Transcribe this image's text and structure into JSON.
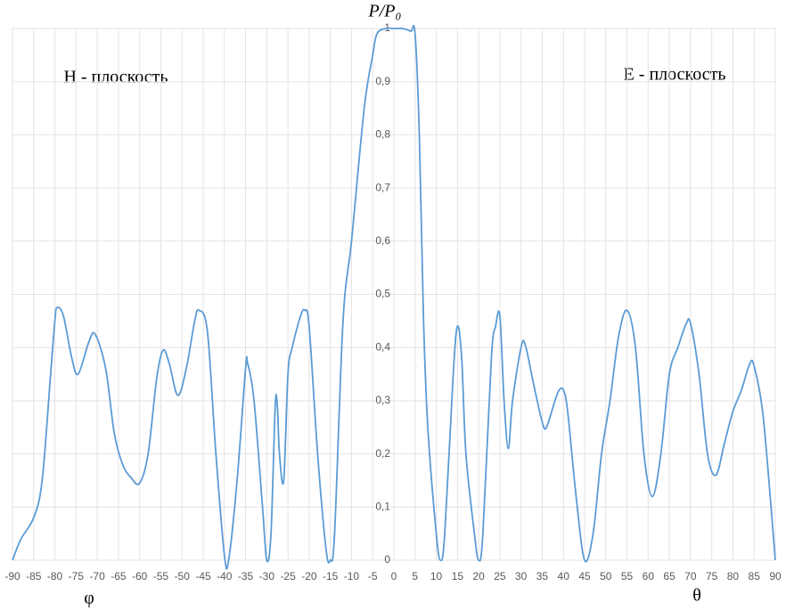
{
  "chart_data": {
    "type": "line",
    "y_label": "P/P₀",
    "annotations": [
      "H - плоскость",
      "E - плоскость",
      "φ",
      "θ"
    ],
    "x": [
      -90,
      -88,
      -85,
      -83,
      -81,
      -80,
      -79.5,
      -78,
      -76,
      -74.5,
      -72,
      -70.5,
      -68,
      -66,
      -64,
      -62,
      -60,
      -58,
      -56,
      -54.5,
      -53,
      -51,
      -49,
      -47,
      -46,
      -44,
      -42,
      -40,
      -39,
      -37,
      -35,
      -34.5,
      -33,
      -31,
      -30,
      -29,
      -28,
      -27.5,
      -27,
      -26,
      -25,
      -24,
      -22,
      -21,
      -20,
      -18,
      -16,
      -15,
      -14,
      -12,
      -10,
      -7,
      -5,
      -4,
      -2,
      0,
      2,
      4,
      5,
      6,
      7,
      8,
      10,
      11,
      12,
      14,
      15,
      16,
      17,
      19,
      20,
      21,
      23,
      24,
      25,
      26,
      27,
      28,
      30,
      31,
      33,
      35,
      36,
      38,
      39,
      40,
      41,
      43,
      45,
      47,
      49,
      51,
      53,
      55,
      57,
      59,
      61,
      63,
      65,
      67,
      69,
      70,
      72,
      74,
      76,
      78,
      80,
      82,
      84,
      85,
      87,
      89,
      90
    ],
    "series": [
      {
        "color": "#5b9bd5",
        "values": [
          0,
          0.04,
          0.08,
          0.15,
          0.35,
          0.45,
          0.475,
          0.46,
          0.38,
          0.35,
          0.41,
          0.425,
          0.36,
          0.24,
          0.18,
          0.155,
          0.145,
          0.2,
          0.34,
          0.395,
          0.37,
          0.31,
          0.36,
          0.45,
          0.47,
          0.43,
          0.2,
          0.01,
          0,
          0.15,
          0.36,
          0.37,
          0.3,
          0.1,
          0,
          0.05,
          0.29,
          0.29,
          0.2,
          0.15,
          0.35,
          0.4,
          0.46,
          0.47,
          0.44,
          0.2,
          0.02,
          0,
          0.05,
          0.45,
          0.6,
          0.85,
          0.95,
          0.99,
          1,
          1,
          1,
          0.995,
          0.99,
          0.8,
          0.45,
          0.25,
          0.05,
          0,
          0.05,
          0.35,
          0.44,
          0.38,
          0.2,
          0.05,
          0,
          0.05,
          0.38,
          0.44,
          0.46,
          0.3,
          0.21,
          0.3,
          0.4,
          0.405,
          0.33,
          0.26,
          0.25,
          0.3,
          0.32,
          0.32,
          0.28,
          0.12,
          0,
          0.05,
          0.2,
          0.3,
          0.42,
          0.47,
          0.4,
          0.2,
          0.12,
          0.2,
          0.35,
          0.4,
          0.445,
          0.445,
          0.35,
          0.2,
          0.16,
          0.22,
          0.28,
          0.32,
          0.37,
          0.365,
          0.28,
          0.1,
          0
        ]
      }
    ],
    "xlim": [
      -90,
      90
    ],
    "ylim": [
      0,
      1
    ],
    "xticks": [
      -90,
      -85,
      -80,
      -75,
      -70,
      -65,
      -60,
      -55,
      -50,
      -45,
      -40,
      -35,
      -30,
      -25,
      -20,
      -15,
      -10,
      -5,
      0,
      5,
      10,
      15,
      20,
      25,
      30,
      35,
      40,
      45,
      50,
      55,
      60,
      65,
      70,
      75,
      80,
      85,
      90
    ],
    "yticks": [
      0,
      {
        "value": 0.1,
        "label": "0,1"
      },
      {
        "value": 0.2,
        "label": "0,2"
      },
      {
        "value": 0.3,
        "label": "0,3"
      },
      {
        "value": 0.4,
        "label": "0,4"
      },
      {
        "value": 0.5,
        "label": "0,5"
      },
      {
        "value": 0.6,
        "label": "0,6"
      },
      {
        "value": 0.7,
        "label": "0,7"
      },
      {
        "value": 0.8,
        "label": "0,8"
      },
      {
        "value": 0.9,
        "label": "0,9"
      },
      1
    ],
    "grid": true
  }
}
